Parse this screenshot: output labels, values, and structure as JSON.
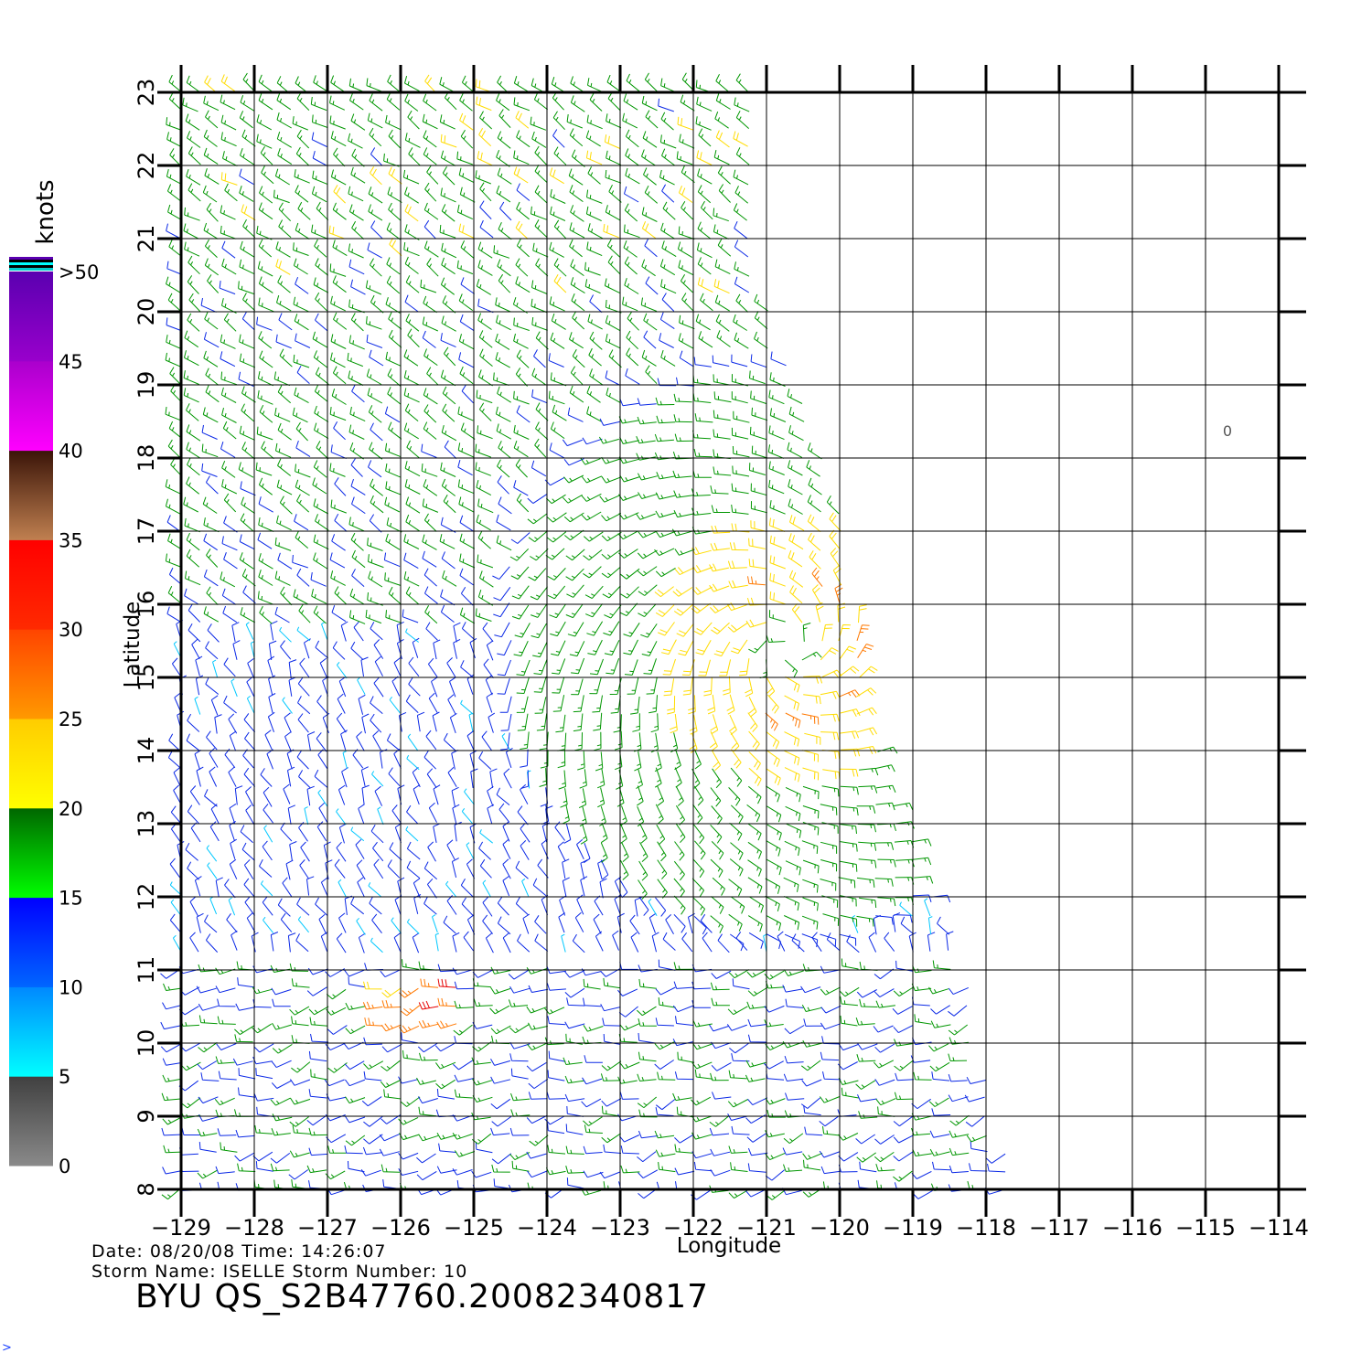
{
  "map": {
    "x_axis_label": "Longitude",
    "y_axis_label": "Latitude",
    "lon_range": [
      -129,
      -114
    ],
    "lat_range": [
      8,
      23
    ],
    "lon_ticks": [
      -129,
      -128,
      -127,
      -126,
      -125,
      -124,
      -123,
      -122,
      -121,
      -120,
      -119,
      -118,
      -117,
      -116,
      -115,
      -114
    ],
    "lat_ticks": [
      8,
      9,
      10,
      11,
      12,
      13,
      14,
      15,
      16,
      17,
      18,
      19,
      20,
      21,
      22,
      23
    ],
    "lon_tick_labels": [
      "−129",
      "−128",
      "−127",
      "−126",
      "−125",
      "−124",
      "−123",
      "−122",
      "−121",
      "−120",
      "−119",
      "−118",
      "−117",
      "−116",
      "−115",
      "−114"
    ],
    "lat_tick_labels": [
      "8",
      "9",
      "10",
      "11",
      "12",
      "13",
      "14",
      "15",
      "16",
      "17",
      "18",
      "19",
      "20",
      "21",
      "22",
      "23"
    ],
    "grid": true,
    "swath_edge_lon_by_lat": [
      [
        8,
        -117.6
      ],
      [
        11,
        -118.3
      ],
      [
        14,
        -119.5
      ],
      [
        17,
        -119.9
      ],
      [
        18,
        -120.2
      ],
      [
        19,
        -120.6
      ],
      [
        20,
        -121.0
      ],
      [
        21,
        -121.2
      ],
      [
        23,
        -121.2
      ]
    ],
    "storm_center": {
      "lon": -120.7,
      "lat": 15.4
    },
    "land_marker": {
      "lon": -114.7,
      "lat": 18.3,
      "label": "0"
    }
  },
  "colorbar": {
    "unit_label": "knots",
    "tick_labels": [
      "0",
      "5",
      "10",
      "15",
      "20",
      "25",
      "30",
      "35",
      "40",
      "45",
      ">50"
    ],
    "segments": [
      {
        "from": 0,
        "to": 5,
        "top": "#404040",
        "bottom": "#8a8a8a"
      },
      {
        "from": 5,
        "to": 10,
        "top": "#0088ff",
        "bottom": "#00ffff"
      },
      {
        "from": 10,
        "to": 15,
        "top": "#0000ff",
        "bottom": "#0066ff"
      },
      {
        "from": 15,
        "to": 20,
        "top": "#006600",
        "bottom": "#00ff00"
      },
      {
        "from": 20,
        "to": 25,
        "top": "#ffcc00",
        "bottom": "#ffff00"
      },
      {
        "from": 25,
        "to": 30,
        "top": "#ff4400",
        "bottom": "#ff9900"
      },
      {
        "from": 30,
        "to": 35,
        "top": "#ff0000",
        "bottom": "#ff2a00"
      },
      {
        "from": 35,
        "to": 40,
        "top": "#3a1408",
        "bottom": "#c08050"
      },
      {
        "from": 40,
        "to": 45,
        "top": "#aa00cc",
        "bottom": "#ff00ff"
      },
      {
        "from": 45,
        "to": 50,
        "top": "#5a00b0",
        "bottom": "#9900cc"
      }
    ],
    "cap_colors": [
      "#5a00b0",
      "#000000",
      "#00ffff",
      "#000000",
      "#00cccc"
    ]
  },
  "footer": {
    "date_line": "Date: 08/20/08   Time: 14:26:07",
    "storm_line": "Storm  Name: ISELLE   Storm  Number: 10",
    "product_id": "BYU  QS_S2B47760.20082340817"
  },
  "corner_glyph": ">",
  "colors": {
    "calm": "#777777",
    "light": "#00c8ff",
    "moderate": "#0a28e6",
    "fresh": "#009600",
    "strong": "#ffdc00",
    "gale": "#ff7800",
    "storm": "#e60000",
    "severe": "#963c1e",
    "extreme": "#c800c8"
  }
}
